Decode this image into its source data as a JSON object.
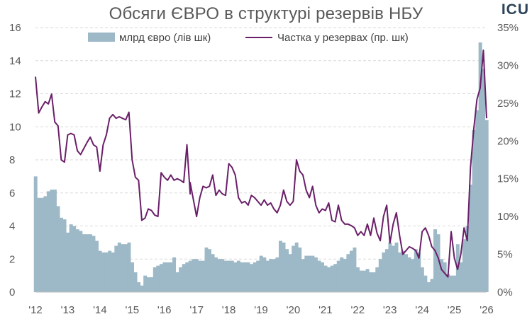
{
  "header": {
    "title": "Обсяги ЄВРО в структурі резервів НБУ",
    "logo": "ICU"
  },
  "colors": {
    "bars": "#9db8c6",
    "line": "#6a1f68",
    "grid": "#d9d9d9",
    "text": "#595959"
  },
  "chart_data": {
    "type": "bar+line",
    "title": "Обсяги ЄВРО в структурі резервів НБУ",
    "x_ticks": [
      "'12",
      "'13",
      "'14",
      "'15",
      "'16",
      "'17",
      "'18",
      "'19",
      "'20",
      "'21",
      "'22",
      "'23",
      "'24",
      "'25",
      "'26"
    ],
    "y_left": {
      "ticks": [
        "0",
        "2",
        "4",
        "6",
        "8",
        "10",
        "12",
        "14",
        "16"
      ],
      "range": [
        0,
        16
      ]
    },
    "y_right": {
      "ticks": [
        "0%",
        "5%",
        "10%",
        "15%",
        "20%",
        "25%",
        "30%",
        "35%"
      ],
      "range": [
        0,
        35
      ]
    },
    "legend": {
      "position": "top",
      "bar_label": "млрд євро (лів шк)",
      "line_label": "Частка у резервах (пр. шк)"
    },
    "grid": true,
    "x_range": [
      2012.0,
      2026.0
    ],
    "series": [
      {
        "name": "млрд євро (лів шк)",
        "axis": "left",
        "type": "bar",
        "points": [
          [
            2012.0,
            7.0
          ],
          [
            2012.1,
            5.7
          ],
          [
            2012.2,
            5.7
          ],
          [
            2012.3,
            5.8
          ],
          [
            2012.4,
            6.1
          ],
          [
            2012.5,
            6.2
          ],
          [
            2012.6,
            6.2
          ],
          [
            2012.7,
            5.2
          ],
          [
            2012.8,
            4.5
          ],
          [
            2012.9,
            4.4
          ],
          [
            2013.0,
            3.6
          ],
          [
            2013.1,
            4.1
          ],
          [
            2013.2,
            4.0
          ],
          [
            2013.3,
            3.8
          ],
          [
            2013.4,
            3.7
          ],
          [
            2013.5,
            3.5
          ],
          [
            2013.6,
            3.5
          ],
          [
            2013.7,
            3.5
          ],
          [
            2013.8,
            3.4
          ],
          [
            2013.9,
            3.1
          ],
          [
            2014.0,
            2.5
          ],
          [
            2014.1,
            2.4
          ],
          [
            2014.2,
            2.4
          ],
          [
            2014.3,
            2.5
          ],
          [
            2014.4,
            2.4
          ],
          [
            2014.5,
            2.8
          ],
          [
            2014.6,
            3.0
          ],
          [
            2014.7,
            2.9
          ],
          [
            2014.8,
            2.9
          ],
          [
            2014.9,
            3.0
          ],
          [
            2015.0,
            1.8
          ],
          [
            2015.1,
            1.2
          ],
          [
            2015.2,
            0.6
          ],
          [
            2015.3,
            0.4
          ],
          [
            2015.4,
            1.0
          ],
          [
            2015.5,
            0.9
          ],
          [
            2015.6,
            0.9
          ],
          [
            2015.7,
            1.5
          ],
          [
            2015.8,
            1.6
          ],
          [
            2015.9,
            1.7
          ],
          [
            2016.0,
            1.8
          ],
          [
            2016.1,
            1.8
          ],
          [
            2016.2,
            1.8
          ],
          [
            2016.3,
            2.1
          ],
          [
            2016.4,
            1.2
          ],
          [
            2016.5,
            1.5
          ],
          [
            2016.6,
            1.7
          ],
          [
            2016.7,
            1.8
          ],
          [
            2016.8,
            1.9
          ],
          [
            2016.9,
            2.0
          ],
          [
            2017.0,
            2.0
          ],
          [
            2017.1,
            1.9
          ],
          [
            2017.2,
            1.9
          ],
          [
            2017.3,
            2.7
          ],
          [
            2017.4,
            2.6
          ],
          [
            2017.5,
            2.3
          ],
          [
            2017.6,
            2.1
          ],
          [
            2017.7,
            2.0
          ],
          [
            2017.8,
            2.0
          ],
          [
            2017.9,
            1.9
          ],
          [
            2018.0,
            1.9
          ],
          [
            2018.1,
            1.9
          ],
          [
            2018.2,
            1.8
          ],
          [
            2018.3,
            1.9
          ],
          [
            2018.4,
            1.8
          ],
          [
            2018.5,
            1.8
          ],
          [
            2018.6,
            1.8
          ],
          [
            2018.7,
            1.7
          ],
          [
            2018.8,
            1.8
          ],
          [
            2018.9,
            1.9
          ],
          [
            2019.0,
            2.2
          ],
          [
            2019.1,
            2.1
          ],
          [
            2019.2,
            1.9
          ],
          [
            2019.3,
            2.0
          ],
          [
            2019.4,
            2.0
          ],
          [
            2019.5,
            2.1
          ],
          [
            2019.6,
            3.1
          ],
          [
            2019.7,
            3.0
          ],
          [
            2019.8,
            2.6
          ],
          [
            2019.9,
            2.3
          ],
          [
            2020.0,
            2.8
          ],
          [
            2020.1,
            3.0
          ],
          [
            2020.2,
            2.7
          ],
          [
            2020.3,
            2.0
          ],
          [
            2020.4,
            2.2
          ],
          [
            2020.5,
            2.2
          ],
          [
            2020.6,
            2.2
          ],
          [
            2020.7,
            2.1
          ],
          [
            2020.8,
            1.9
          ],
          [
            2020.9,
            1.8
          ],
          [
            2021.0,
            1.6
          ],
          [
            2021.1,
            1.5
          ],
          [
            2021.2,
            1.6
          ],
          [
            2021.3,
            1.7
          ],
          [
            2021.4,
            1.9
          ],
          [
            2021.5,
            2.1
          ],
          [
            2021.6,
            2.0
          ],
          [
            2021.7,
            2.3
          ],
          [
            2021.8,
            2.5
          ],
          [
            2021.9,
            2.7
          ],
          [
            2022.0,
            1.5
          ],
          [
            2022.1,
            1.3
          ],
          [
            2022.2,
            1.3
          ],
          [
            2022.3,
            1.4
          ],
          [
            2022.4,
            1.2
          ],
          [
            2022.5,
            1.2
          ],
          [
            2022.6,
            1.5
          ],
          [
            2022.7,
            2.0
          ],
          [
            2022.8,
            2.4
          ],
          [
            2022.9,
            2.6
          ],
          [
            2023.0,
            3.0
          ],
          [
            2023.1,
            2.8
          ],
          [
            2023.2,
            3.0
          ],
          [
            2023.3,
            2.4
          ],
          [
            2023.4,
            2.5
          ],
          [
            2023.5,
            2.3
          ],
          [
            2023.6,
            2.1
          ],
          [
            2023.7,
            2.0
          ],
          [
            2023.8,
            2.6
          ],
          [
            2023.9,
            2.4
          ],
          [
            2024.0,
            1.5
          ],
          [
            2024.1,
            1.0
          ],
          [
            2024.2,
            0.6
          ],
          [
            2024.3,
            0.8
          ],
          [
            2024.4,
            3.8
          ],
          [
            2024.5,
            3.5
          ],
          [
            2024.6,
            2.0
          ],
          [
            2024.7,
            1.8
          ],
          [
            2024.8,
            1.1
          ],
          [
            2024.9,
            1.0
          ],
          [
            2025.0,
            1.0
          ],
          [
            2025.1,
            2.9
          ],
          [
            2025.2,
            1.8
          ],
          [
            2025.3,
            3.2
          ],
          [
            2025.4,
            4.0
          ],
          [
            2025.5,
            6.5
          ],
          [
            2025.6,
            9.8
          ],
          [
            2025.7,
            11.0
          ],
          [
            2025.8,
            15.1
          ],
          [
            2025.9,
            13.5
          ],
          [
            2026.0,
            10.4
          ]
        ]
      },
      {
        "name": "Частка у резервах (пр. шк)",
        "axis": "right",
        "type": "line",
        "points": [
          [
            2012.0,
            28.5
          ],
          [
            2012.1,
            23.7
          ],
          [
            2012.2,
            24.5
          ],
          [
            2012.3,
            25.2
          ],
          [
            2012.4,
            24.9
          ],
          [
            2012.5,
            26.2
          ],
          [
            2012.6,
            22.5
          ],
          [
            2012.7,
            22.0
          ],
          [
            2012.8,
            17.5
          ],
          [
            2012.9,
            17.2
          ],
          [
            2013.0,
            20.8
          ],
          [
            2013.1,
            21.0
          ],
          [
            2013.2,
            20.8
          ],
          [
            2013.3,
            18.7
          ],
          [
            2013.4,
            18.2
          ],
          [
            2013.5,
            19.0
          ],
          [
            2013.6,
            19.8
          ],
          [
            2013.7,
            20.5
          ],
          [
            2013.8,
            19.5
          ],
          [
            2013.9,
            19.2
          ],
          [
            2014.0,
            16.0
          ],
          [
            2014.1,
            19.5
          ],
          [
            2014.2,
            20.8
          ],
          [
            2014.3,
            23.0
          ],
          [
            2014.4,
            23.5
          ],
          [
            2014.5,
            23.0
          ],
          [
            2014.6,
            23.2
          ],
          [
            2014.7,
            23.0
          ],
          [
            2014.8,
            22.8
          ],
          [
            2014.9,
            23.8
          ],
          [
            2015.0,
            17.5
          ],
          [
            2015.1,
            15.2
          ],
          [
            2015.2,
            14.8
          ],
          [
            2015.3,
            9.5
          ],
          [
            2015.4,
            9.8
          ],
          [
            2015.5,
            11.0
          ],
          [
            2015.6,
            10.8
          ],
          [
            2015.7,
            10.2
          ],
          [
            2015.8,
            10.0
          ],
          [
            2015.9,
            15.8
          ],
          [
            2016.0,
            15.2
          ],
          [
            2016.1,
            14.8
          ],
          [
            2016.2,
            15.5
          ],
          [
            2016.3,
            14.8
          ],
          [
            2016.4,
            15.0
          ],
          [
            2016.5,
            14.8
          ],
          [
            2016.6,
            14.5
          ],
          [
            2016.7,
            19.5
          ],
          [
            2016.8,
            13.0
          ],
          [
            2016.8,
            14.5
          ],
          [
            2017.0,
            10.0
          ],
          [
            2017.1,
            12.5
          ],
          [
            2017.2,
            14.0
          ],
          [
            2017.3,
            13.8
          ],
          [
            2017.4,
            14.0
          ],
          [
            2017.5,
            15.5
          ],
          [
            2017.6,
            12.8
          ],
          [
            2017.7,
            13.5
          ],
          [
            2017.8,
            13.0
          ],
          [
            2017.9,
            12.8
          ],
          [
            2018.0,
            17.0
          ],
          [
            2018.1,
            16.5
          ],
          [
            2018.2,
            15.5
          ],
          [
            2018.3,
            12.5
          ],
          [
            2018.4,
            11.8
          ],
          [
            2018.5,
            12.0
          ],
          [
            2018.6,
            11.5
          ],
          [
            2018.7,
            12.8
          ],
          [
            2018.8,
            12.5
          ],
          [
            2018.9,
            12.0
          ],
          [
            2019.0,
            11.5
          ],
          [
            2019.1,
            12.2
          ],
          [
            2019.2,
            11.5
          ],
          [
            2019.3,
            11.8
          ],
          [
            2019.4,
            11.0
          ],
          [
            2019.5,
            10.5
          ],
          [
            2019.6,
            11.5
          ],
          [
            2019.7,
            13.5
          ],
          [
            2019.8,
            12.0
          ],
          [
            2019.9,
            11.5
          ],
          [
            2020.0,
            12.0
          ],
          [
            2020.1,
            17.5
          ],
          [
            2020.2,
            16.0
          ],
          [
            2020.3,
            15.5
          ],
          [
            2020.4,
            13.5
          ],
          [
            2020.5,
            12.5
          ],
          [
            2020.6,
            14.0
          ],
          [
            2020.7,
            11.5
          ],
          [
            2020.8,
            10.5
          ],
          [
            2020.9,
            11.0
          ],
          [
            2021.0,
            10.8
          ],
          [
            2021.1,
            11.8
          ],
          [
            2021.2,
            9.5
          ],
          [
            2021.3,
            9.3
          ],
          [
            2021.4,
            11.5
          ],
          [
            2021.5,
            9.5
          ],
          [
            2021.6,
            9.0
          ],
          [
            2021.7,
            9.0
          ],
          [
            2021.8,
            8.8
          ],
          [
            2021.9,
            8.5
          ],
          [
            2022.0,
            7.5
          ],
          [
            2022.1,
            8.0
          ],
          [
            2022.2,
            7.5
          ],
          [
            2022.3,
            9.0
          ],
          [
            2022.4,
            7.5
          ],
          [
            2022.5,
            9.8
          ],
          [
            2022.6,
            7.8
          ],
          [
            2022.7,
            6.8
          ],
          [
            2022.8,
            10.0
          ],
          [
            2022.9,
            11.5
          ],
          [
            2023.0,
            6.5
          ],
          [
            2023.1,
            9.0
          ],
          [
            2023.2,
            10.5
          ],
          [
            2023.3,
            7.5
          ],
          [
            2023.4,
            5.0
          ],
          [
            2023.5,
            5.5
          ],
          [
            2023.6,
            6.0
          ],
          [
            2023.7,
            5.8
          ],
          [
            2023.8,
            5.5
          ],
          [
            2023.9,
            4.5
          ],
          [
            2024.0,
            8.0
          ],
          [
            2024.1,
            8.5
          ],
          [
            2024.2,
            7.5
          ],
          [
            2024.3,
            6.0
          ],
          [
            2024.4,
            5.5
          ],
          [
            2024.5,
            4.5
          ],
          [
            2024.6,
            3.0
          ],
          [
            2024.7,
            2.5
          ],
          [
            2024.8,
            2.0
          ],
          [
            2024.9,
            8.0
          ],
          [
            2025.0,
            4.5
          ],
          [
            2025.1,
            3.0
          ],
          [
            2025.2,
            5.0
          ],
          [
            2025.3,
            8.5
          ],
          [
            2025.4,
            6.8
          ],
          [
            2025.5,
            16.5
          ],
          [
            2025.6,
            21.5
          ],
          [
            2025.7,
            25.5
          ],
          [
            2025.8,
            27.0
          ],
          [
            2025.9,
            32.0
          ],
          [
            2026.0,
            23.0
          ]
        ]
      }
    ]
  }
}
